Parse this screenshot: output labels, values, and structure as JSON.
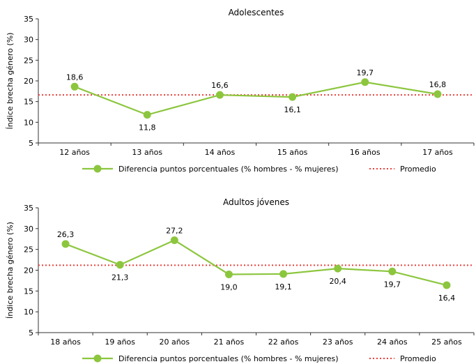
{
  "chart_data": [
    {
      "type": "line",
      "title": "Adolescentes",
      "ylabel": "Índice brecha género (%)",
      "ylim": [
        5,
        35
      ],
      "yticks": [
        5,
        10,
        15,
        20,
        25,
        30,
        35
      ],
      "categories": [
        "12 años",
        "13 años",
        "14 años",
        "15 años",
        "16 años",
        "17 años"
      ],
      "series": [
        {
          "name": "Diferencia puntos porcentuales (% hombres - % mujeres)",
          "values": [
            18.6,
            11.8,
            16.6,
            16.1,
            19.7,
            16.8
          ],
          "labels": [
            "18,6",
            "11,8",
            "16,6",
            "16,1",
            "19,7",
            "16,8"
          ],
          "label_positions": [
            "above",
            "below",
            "above",
            "below",
            "above",
            "above"
          ],
          "color": "#8cc63e"
        }
      ],
      "average": {
        "name": "Promedio",
        "value": 16.6,
        "color": "#e8413b"
      },
      "grid": false,
      "legend_position": "bottom"
    },
    {
      "type": "line",
      "title": "Adultos jóvenes",
      "ylabel": "Índice brecha género (%)",
      "ylim": [
        5,
        35
      ],
      "yticks": [
        5,
        10,
        15,
        20,
        25,
        30,
        35
      ],
      "categories": [
        "18 años",
        "19 años",
        "20 años",
        "21 años",
        "22 años",
        "23 años",
        "24 años",
        "25 años"
      ],
      "series": [
        {
          "name": "Diferencia puntos porcentuales (% hombres - % mujeres)",
          "values": [
            26.3,
            21.3,
            27.2,
            19.0,
            19.1,
            20.4,
            19.7,
            16.4
          ],
          "labels": [
            "26,3",
            "21,3",
            "27,2",
            "19,0",
            "19,1",
            "20,4",
            "19,7",
            "16,4"
          ],
          "label_positions": [
            "above",
            "below",
            "above",
            "below",
            "below",
            "below",
            "below",
            "below"
          ],
          "color": "#8cc63e"
        }
      ],
      "average": {
        "name": "Promedio",
        "value": 21.2,
        "color": "#e8413b"
      },
      "grid": false,
      "legend_position": "bottom"
    }
  ]
}
